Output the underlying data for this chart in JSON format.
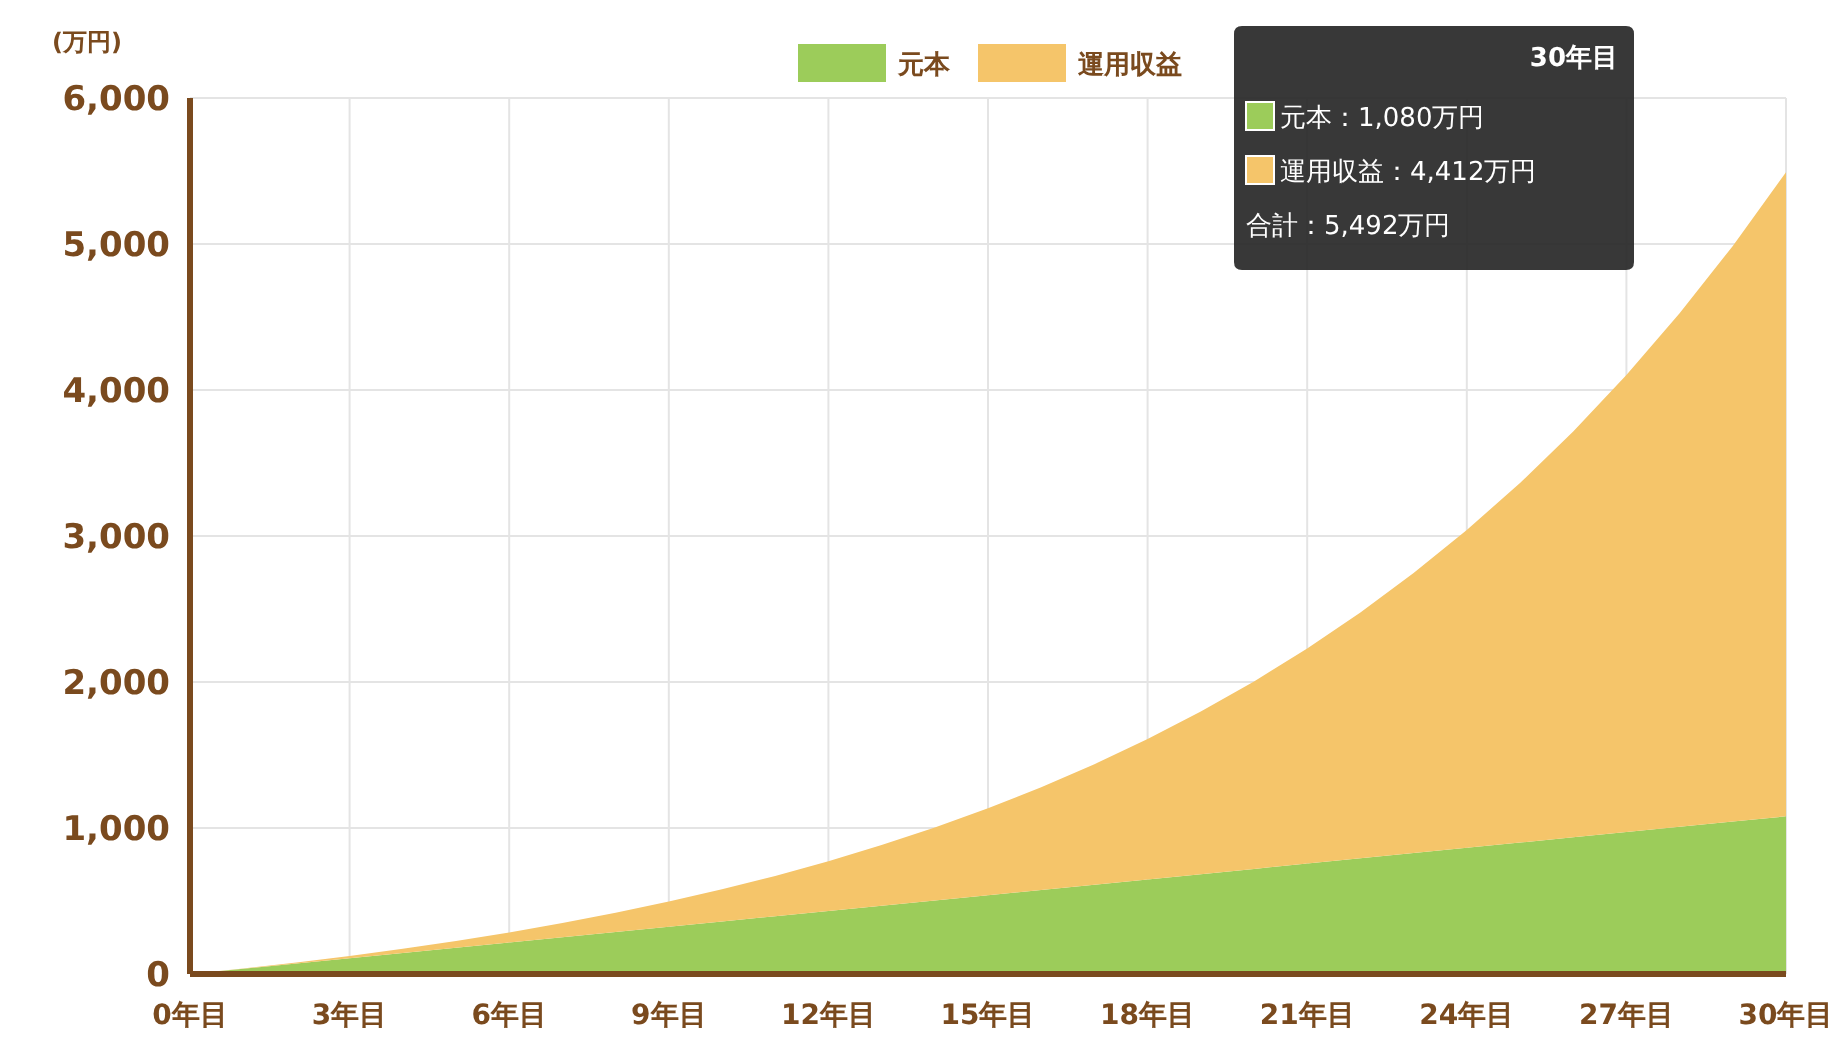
{
  "chart_data": {
    "type": "area",
    "stacked": true,
    "ylabel": "(万円)",
    "categories": [
      "0年目",
      null,
      null,
      "3年目",
      null,
      null,
      "6年目",
      null,
      null,
      "9年目",
      null,
      null,
      "12年目",
      null,
      null,
      "15年目",
      null,
      null,
      "18年目",
      null,
      null,
      "21年目",
      null,
      null,
      "24年目",
      null,
      null,
      "27年目",
      null,
      null,
      "30年目"
    ],
    "series": [
      {
        "name": "元本",
        "color": "#9ccc5a",
        "values": [
          0,
          36,
          72,
          108,
          144,
          180,
          216,
          252,
          288,
          324,
          360,
          396,
          432,
          468,
          504,
          540,
          576,
          612,
          648,
          684,
          720,
          756,
          792,
          828,
          864,
          900,
          936,
          972,
          1008,
          1044,
          1080
        ]
      },
      {
        "name": "運用収益",
        "color": "#f5c56a",
        "values": [
          0,
          2,
          7,
          15,
          29,
          46,
          69,
          97,
          132,
          172,
          221,
          276,
          341,
          415,
          500,
          595,
          703,
          825,
          961,
          1114,
          1284,
          1473,
          1684,
          1918,
          2177,
          2463,
          2780,
          3131,
          3517,
          3943,
          4412
        ]
      }
    ],
    "ylim": [
      0,
      6000
    ],
    "yticks": [
      {
        "value": 0,
        "label": "0"
      },
      {
        "value": 1000,
        "label": "1,000"
      },
      {
        "value": 2000,
        "label": "2,000"
      },
      {
        "value": 3000,
        "label": "3,000"
      },
      {
        "value": 4000,
        "label": "4,000"
      },
      {
        "value": 5000,
        "label": "5,000"
      },
      {
        "value": 6000,
        "label": "6,000"
      }
    ],
    "grid": true,
    "legend": "top",
    "annotations": [
      "30年目",
      "元本：1,080万円",
      "運用収益：4,412万円",
      "合計：5,492万円"
    ]
  }
}
